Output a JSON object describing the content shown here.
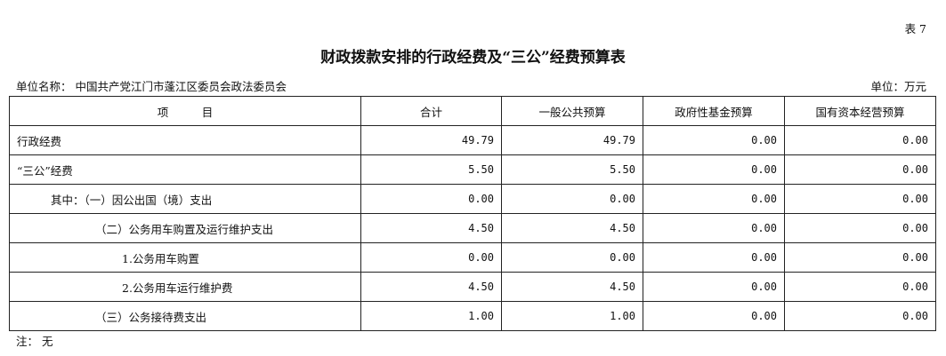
{
  "table_no": "表 7",
  "title": "财政拨款安排的行政经费及“三公”经费预算表",
  "unit_name": "单位名称：  中国共产党江门市蓬江区委员会政法委员会",
  "unit": "单位：万元",
  "headers": [
    "项　　　目",
    "合计",
    "一般公共预算",
    "政府性基金预算",
    "国有资本经营预算"
  ],
  "rows": [
    {
      "item": "行政经费",
      "indent": 0,
      "values": [
        "49.79",
        "49.79",
        "0.00",
        "0.00"
      ]
    },
    {
      "item": "“三公”经费",
      "indent": 0,
      "values": [
        "5.50",
        "5.50",
        "0.00",
        "0.00"
      ]
    },
    {
      "item": "其中：（一）因公出国（境）支出",
      "indent": 1,
      "values": [
        "0.00",
        "0.00",
        "0.00",
        "0.00"
      ]
    },
    {
      "item": "（二）公务用车购置及运行维护支出",
      "indent": 2,
      "values": [
        "4.50",
        "4.50",
        "0.00",
        "0.00"
      ]
    },
    {
      "item": "1.公务用车购置",
      "indent": 3,
      "values": [
        "0.00",
        "0.00",
        "0.00",
        "0.00"
      ]
    },
    {
      "item": "2.公务用车运行维护费",
      "indent": 3,
      "values": [
        "4.50",
        "4.50",
        "0.00",
        "0.00"
      ]
    },
    {
      "item": "（三）公务接待费支出",
      "indent": 2,
      "values": [
        "1.00",
        "1.00",
        "0.00",
        "0.00"
      ]
    }
  ],
  "note": "注：  无"
}
